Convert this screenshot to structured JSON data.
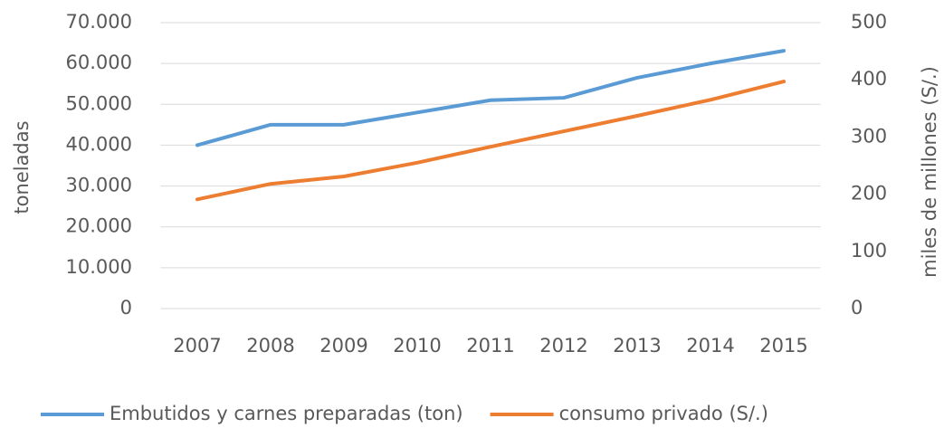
{
  "chart_data": {
    "type": "line",
    "categories": [
      "2007",
      "2008",
      "2009",
      "2010",
      "2011",
      "2012",
      "2013",
      "2014",
      "2015"
    ],
    "series": [
      {
        "name": "Embutidos y carnes preparadas (ton)",
        "color": "#5b9bd5",
        "values": [
          40000,
          45000,
          45000,
          48000,
          51000,
          51600,
          56500,
          60000,
          63100
        ]
      },
      {
        "name": "consumo privado (S/.)",
        "color": "#ed7d31",
        "axis": "y2",
        "values": [
          191,
          218,
          231,
          255,
          283,
          310,
          337,
          365,
          397
        ]
      }
    ],
    "ylabel": "toneladas",
    "y2label": "miles de millones (S/.)",
    "ylim": [
      0,
      70000
    ],
    "yticks": [
      0,
      {
        "value": 10000,
        "label": "10.000"
      },
      {
        "value": 20000,
        "label": "20.000"
      },
      {
        "value": 30000,
        "label": "30.000"
      },
      {
        "value": 40000,
        "label": "40.000"
      },
      {
        "value": 50000,
        "label": "50.000"
      },
      {
        "value": 60000,
        "label": "60.000"
      },
      {
        "value": 70000,
        "label": "70.000"
      }
    ],
    "y2lim": [
      0,
      500
    ],
    "y2ticks": [
      0,
      100,
      200,
      300,
      400,
      500
    ],
    "grid": true,
    "legend": "bottom"
  }
}
